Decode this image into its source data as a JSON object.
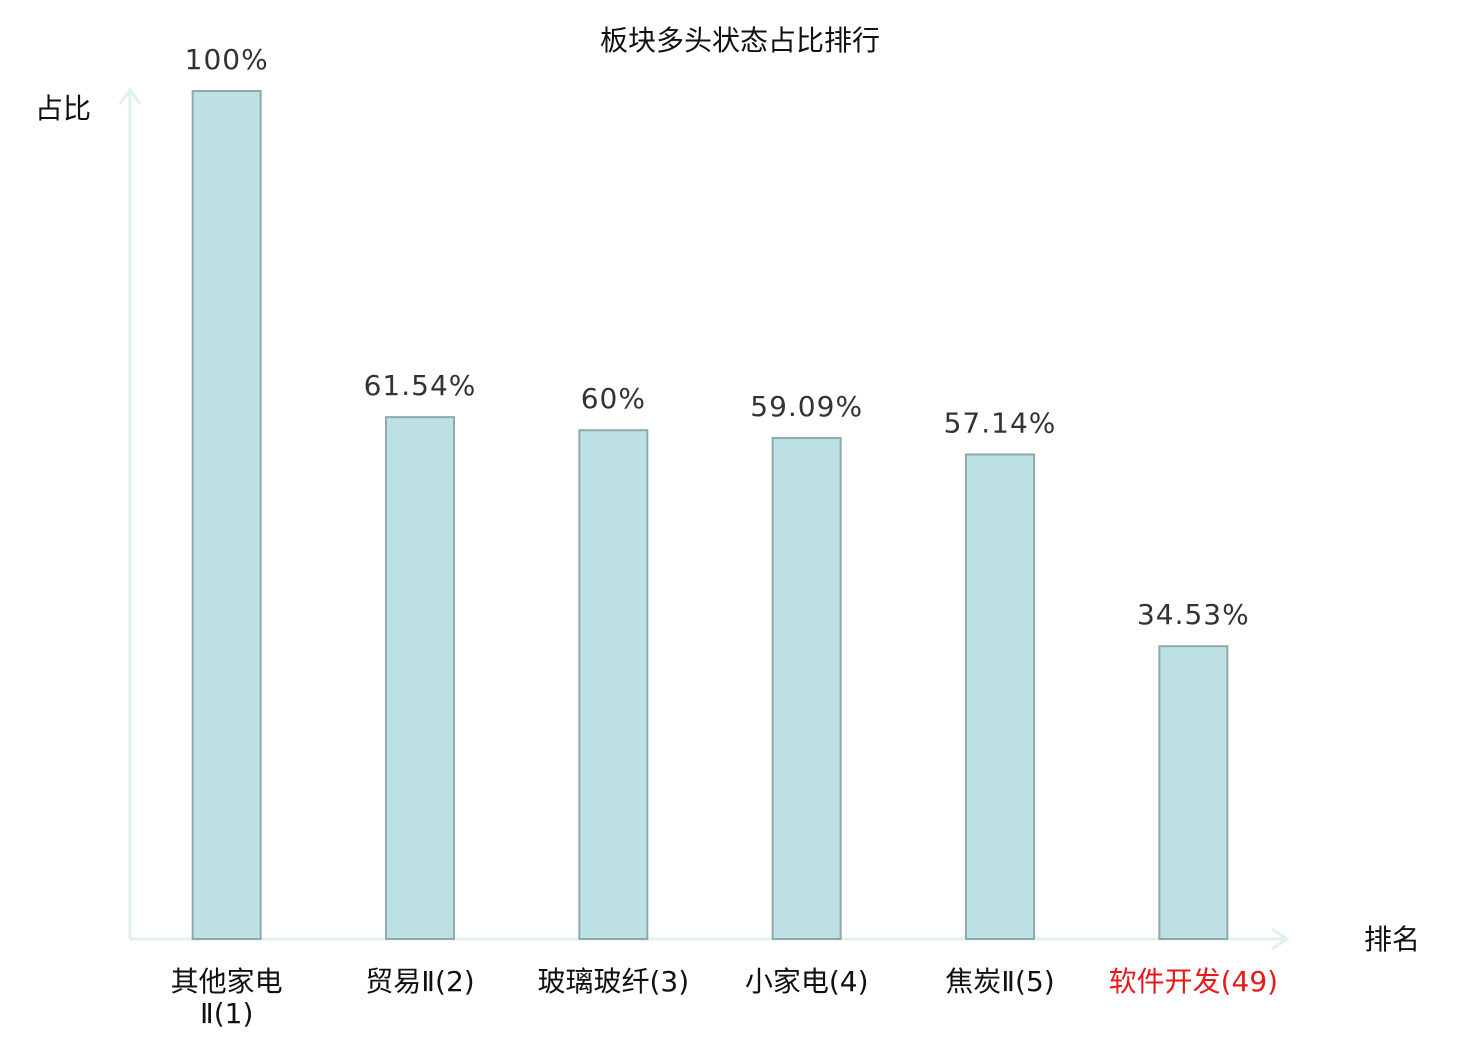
{
  "chart_data": {
    "type": "bar",
    "title": "板块多头状态占比排行",
    "y_label": "占比",
    "x_label": "排名",
    "categories": [
      "其他家电Ⅱ(1)",
      "贸易Ⅱ(2)",
      "玻璃玻纤(3)",
      "小家电(4)",
      "焦炭Ⅱ(5)",
      "软件开发(49)"
    ],
    "category_colors": [
      "#111111",
      "#111111",
      "#111111",
      "#111111",
      "#111111",
      "#e8191a"
    ],
    "values": [
      100,
      61.54,
      60,
      59.09,
      57.14,
      34.53
    ],
    "value_labels": [
      "100%",
      "61.54%",
      "60%",
      "59.09%",
      "57.14%",
      "34.53%"
    ],
    "color": "#bce0e3",
    "edge_color": "#8fa9ad",
    "axis_color": "#dff2ef",
    "ylim": [
      0,
      100
    ]
  }
}
